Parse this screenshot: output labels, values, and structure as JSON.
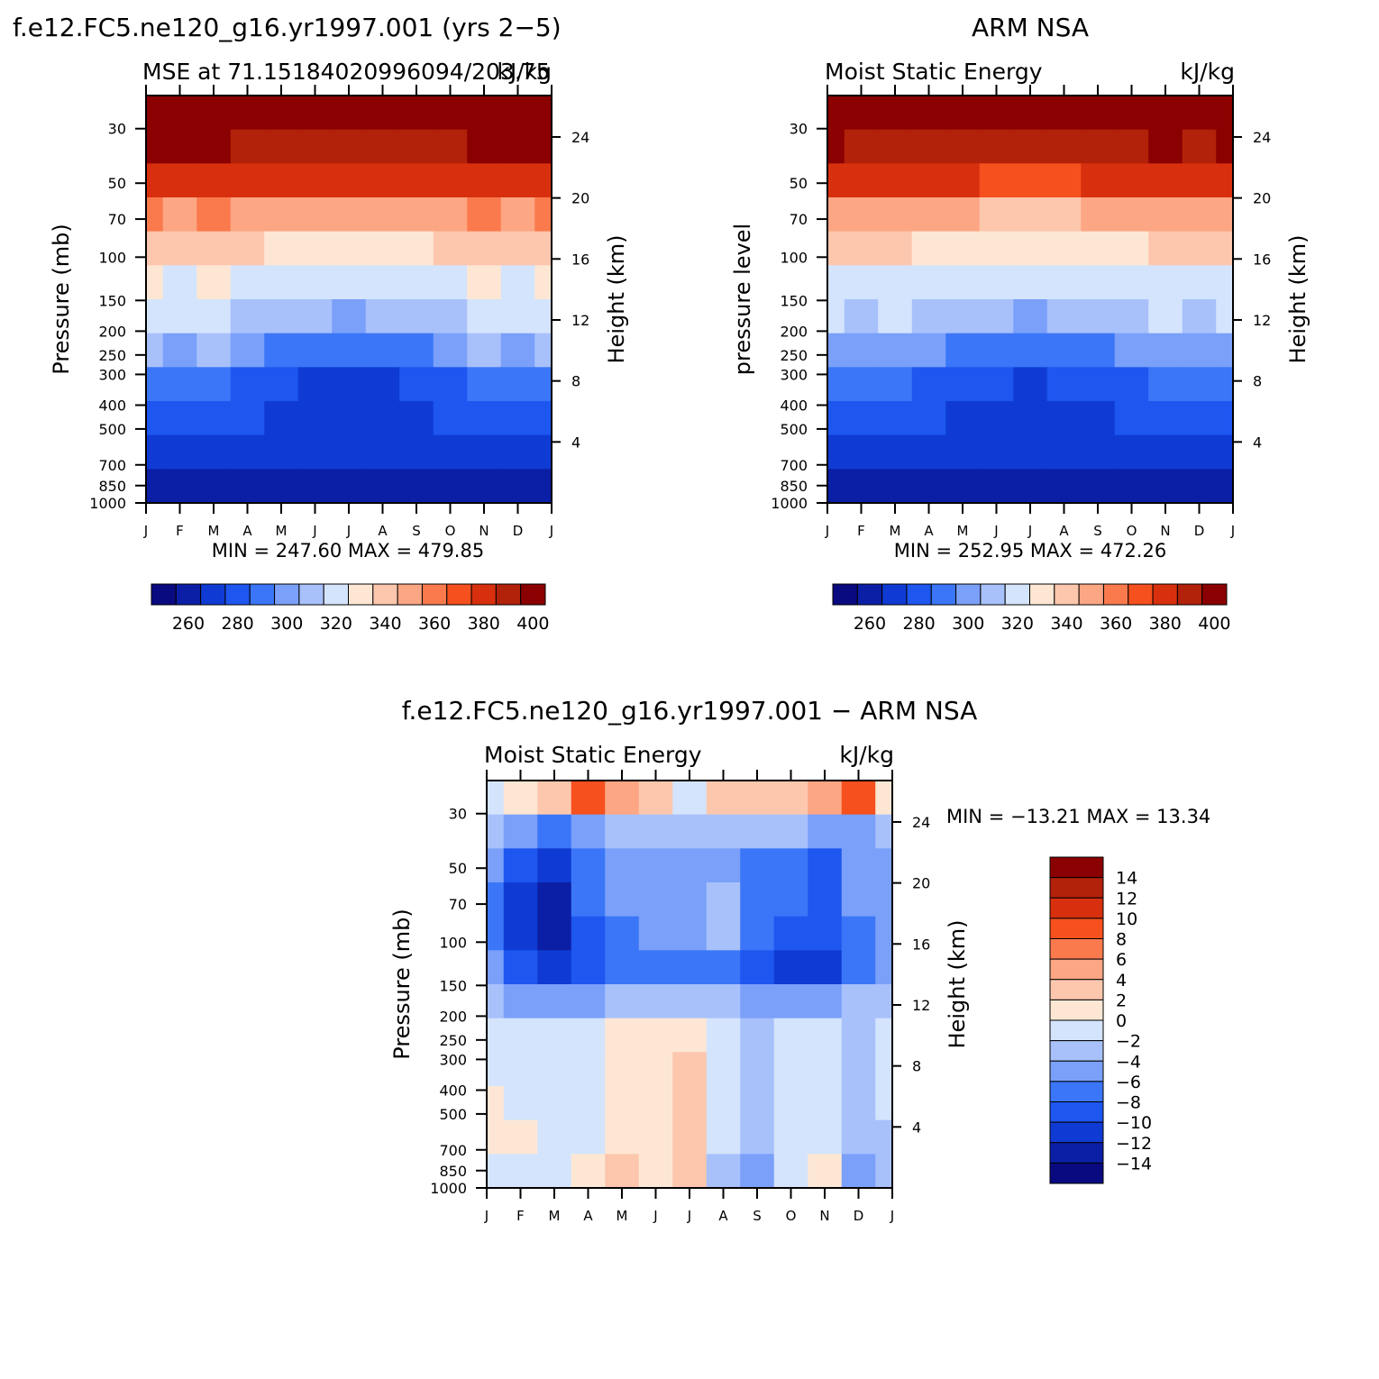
{
  "chart_data": [
    {
      "type": "heatmap",
      "panel": "top-left",
      "title": "f.e12.FC5.ne120_g16.yr1997.001 (yrs 2−5)",
      "subtitle_left": "MSE at 71.15184020996094/203.75",
      "subtitle_right": "kJ/kg",
      "ylabel": "Pressure (mb)",
      "ylabel_right": "Height (km)",
      "xticks": [
        "J",
        "F",
        "M",
        "A",
        "M",
        "J",
        "J",
        "A",
        "S",
        "O",
        "N",
        "D",
        "J"
      ],
      "pressure_ticks": [
        30,
        50,
        70,
        100,
        150,
        200,
        250,
        300,
        400,
        500,
        700,
        850,
        1000
      ],
      "height_ticks": [
        24,
        20,
        16,
        12,
        8,
        4
      ],
      "minmax_label": "MIN = 247.60 MAX = 479.85",
      "colorbar_labels": [
        "260",
        "280",
        "300",
        "320",
        "340",
        "360",
        "380",
        "400"
      ],
      "levels": [
        255,
        265,
        275,
        285,
        295,
        305,
        315,
        325,
        335,
        345,
        355,
        365,
        375,
        385,
        395
      ],
      "field": [
        [
          403,
          403,
          403,
          403,
          403,
          403,
          403,
          403,
          403,
          403,
          403,
          403,
          403
        ],
        [
          397,
          396,
          396,
          394,
          392,
          390,
          389,
          390,
          392,
          394,
          397,
          396,
          397
        ],
        [
          383,
          382,
          382,
          380,
          378,
          376,
          375,
          376,
          378,
          380,
          383,
          382,
          383
        ],
        [
          355,
          354,
          355,
          352,
          349,
          347,
          346,
          347,
          349,
          352,
          355,
          354,
          355
        ],
        [
          338,
          337,
          338,
          335,
          332,
          331,
          330,
          331,
          332,
          335,
          338,
          337,
          338
        ],
        [
          325,
          324,
          325,
          322,
          320,
          318,
          317,
          318,
          320,
          322,
          325,
          324,
          325
        ],
        [
          317,
          316,
          318,
          314,
          310,
          305,
          300,
          305,
          310,
          314,
          317,
          316,
          317
        ],
        [
          305,
          304,
          306,
          300,
          294,
          288,
          285,
          288,
          294,
          300,
          305,
          304,
          305
        ],
        [
          292,
          291,
          293,
          284,
          278,
          274,
          272,
          274,
          278,
          284,
          290,
          292,
          292
        ],
        [
          282,
          281,
          283,
          275,
          270,
          268,
          267,
          268,
          270,
          275,
          280,
          283,
          282
        ],
        [
          272,
          272,
          272,
          268,
          266,
          265,
          265,
          265,
          265,
          266,
          268,
          272,
          272
        ],
        [
          260,
          260,
          262,
          262,
          262,
          263,
          264,
          264,
          264,
          264,
          262,
          260,
          260
        ]
      ]
    },
    {
      "type": "heatmap",
      "panel": "top-right",
      "title": "ARM NSA",
      "subtitle_left": "Moist Static Energy",
      "subtitle_right": "kJ/kg",
      "ylabel": "pressure level",
      "ylabel_right": "Height (km)",
      "xticks": [
        "J",
        "F",
        "M",
        "A",
        "M",
        "J",
        "J",
        "A",
        "S",
        "O",
        "N",
        "D",
        "J"
      ],
      "pressure_ticks": [
        30,
        50,
        70,
        100,
        150,
        200,
        250,
        300,
        400,
        500,
        700,
        850,
        1000
      ],
      "height_ticks": [
        24,
        20,
        16,
        12,
        8,
        4
      ],
      "minmax_label": "MIN = 252.95 MAX = 472.26",
      "colorbar_labels": [
        "260",
        "280",
        "300",
        "320",
        "340",
        "360",
        "380",
        "400"
      ],
      "levels": [
        255,
        265,
        275,
        285,
        295,
        305,
        315,
        325,
        335,
        345,
        355,
        365,
        375,
        385,
        395
      ],
      "field": [
        [
          403,
          403,
          403,
          403,
          403,
          403,
          403,
          403,
          403,
          403,
          403,
          403,
          403
        ],
        [
          395,
          394,
          394,
          393,
          391,
          389,
          388,
          389,
          391,
          393,
          395,
          394,
          395
        ],
        [
          380,
          379,
          379,
          377,
          375,
          373,
          372,
          373,
          375,
          377,
          380,
          379,
          380
        ],
        [
          352,
          351,
          352,
          349,
          346,
          344,
          343,
          344,
          346,
          349,
          352,
          351,
          352
        ],
        [
          336,
          335,
          336,
          333,
          331,
          329,
          328,
          329,
          331,
          333,
          336,
          335,
          336
        ],
        [
          323,
          322,
          323,
          321,
          319,
          317,
          316,
          317,
          319,
          321,
          323,
          322,
          323
        ],
        [
          315,
          314,
          316,
          312,
          308,
          305,
          302,
          305,
          308,
          312,
          315,
          314,
          315
        ],
        [
          303,
          302,
          304,
          298,
          292,
          288,
          286,
          288,
          292,
          298,
          303,
          302,
          303
        ],
        [
          291,
          290,
          292,
          284,
          278,
          275,
          273,
          275,
          278,
          284,
          290,
          291,
          291
        ],
        [
          281,
          280,
          282,
          275,
          271,
          269,
          268,
          269,
          271,
          275,
          280,
          282,
          281
        ],
        [
          271,
          271,
          271,
          268,
          266,
          265,
          265,
          265,
          265,
          266,
          268,
          271,
          271
        ],
        [
          262,
          262,
          262,
          262,
          263,
          264,
          264,
          264,
          264,
          264,
          262,
          261,
          262
        ]
      ]
    },
    {
      "type": "heatmap",
      "panel": "bottom",
      "title": "f.e12.FC5.ne120_g16.yr1997.001 − ARM NSA",
      "subtitle_left": "Moist Static Energy",
      "subtitle_right": "kJ/kg",
      "ylabel": "Pressure (mb)",
      "ylabel_right": "Height (km)",
      "xticks": [
        "J",
        "F",
        "M",
        "A",
        "M",
        "J",
        "J",
        "A",
        "S",
        "O",
        "N",
        "D",
        "J"
      ],
      "pressure_ticks": [
        30,
        50,
        70,
        100,
        150,
        200,
        250,
        300,
        400,
        500,
        700,
        850,
        1000
      ],
      "height_ticks": [
        24,
        20,
        16,
        12,
        8,
        4
      ],
      "minmax_label": "MIN = −13.21 MAX =   13.34",
      "colorbar_labels": [
        "14",
        "12",
        "10",
        "8",
        "6",
        "4",
        "2",
        "0",
        "−2",
        "−4",
        "−6",
        "−8",
        "−10",
        "−12",
        "−14"
      ],
      "levels": [
        -14,
        -12,
        -10,
        -8,
        -6,
        -4,
        -2,
        0,
        2,
        4,
        6,
        8,
        10,
        12,
        14
      ],
      "field": [
        [
          -1,
          0,
          2,
          9,
          5,
          2,
          -1,
          2,
          2,
          3,
          5,
          9,
          1
        ],
        [
          -4,
          -5,
          -7,
          -5,
          -3,
          -3,
          -4,
          -3,
          -3,
          -4,
          -5,
          -6,
          -4
        ],
        [
          -6,
          -10,
          -11,
          -7,
          -6,
          -6,
          -6,
          -5,
          -7,
          -8,
          -9,
          -6,
          -5
        ],
        [
          -7,
          -11,
          -13,
          -7,
          -6,
          -6,
          -5,
          -3,
          -8,
          -8,
          -9,
          -6,
          -5
        ],
        [
          -7,
          -11,
          -13,
          -9,
          -7,
          -6,
          -5,
          -4,
          -8,
          -9,
          -10,
          -7,
          -5
        ],
        [
          -6,
          -10,
          -11,
          -10,
          -8,
          -7,
          -8,
          -7,
          -9,
          -11,
          -11,
          -8,
          -5
        ],
        [
          -4,
          -5,
          -6,
          -5,
          -4,
          -4,
          -4,
          -4,
          -5,
          -5,
          -5,
          -4,
          -3
        ],
        [
          -2,
          -2,
          -2,
          -1,
          1,
          1,
          1,
          -1,
          -3,
          -2,
          -2,
          -3,
          -2
        ],
        [
          -1,
          -1,
          -1,
          -1,
          1,
          1,
          2,
          -1,
          -3,
          -1,
          -1,
          -4,
          -2
        ],
        [
          1,
          -1,
          -1,
          -1,
          1,
          1,
          2,
          -1,
          -3,
          -1,
          -1,
          -4,
          -2
        ],
        [
          1,
          1,
          -1,
          -1,
          1,
          1,
          2,
          -1,
          -3,
          -1,
          -1,
          -4,
          -3
        ],
        [
          -1,
          -1,
          -1,
          1,
          3,
          1,
          2,
          -3,
          -5,
          -1,
          1,
          -6,
          -4
        ]
      ]
    }
  ]
}
